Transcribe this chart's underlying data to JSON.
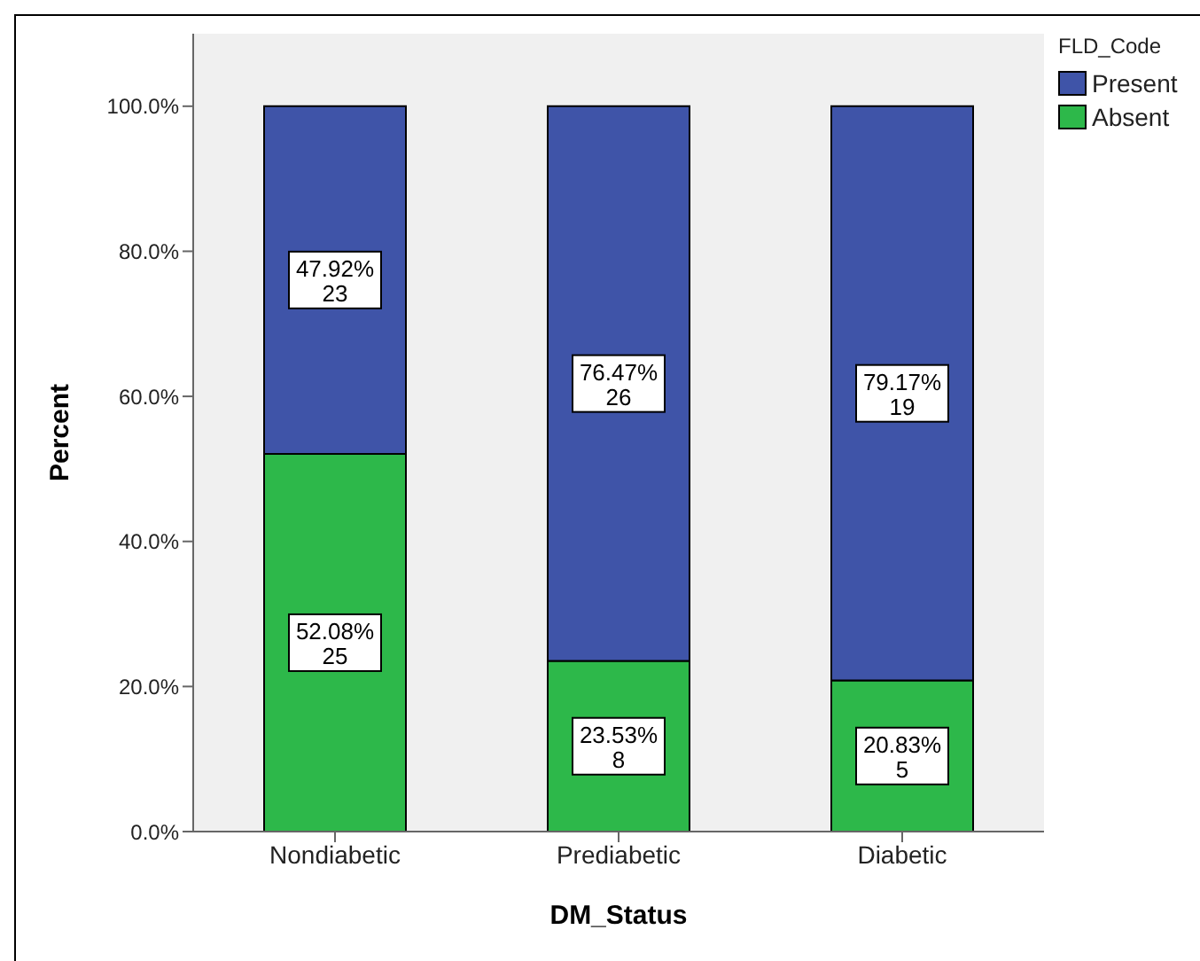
{
  "chart_data": {
    "type": "bar",
    "stacked": true,
    "xlabel": "DM_Status",
    "ylabel": "Percent",
    "legend_title": "FLD_Code",
    "legend": "top right",
    "categories": [
      "Nondiabetic",
      "Prediabetic",
      "Diabetic"
    ],
    "ylim": [
      0,
      110
    ],
    "yticks": [
      {
        "value": 0,
        "label": "0.0%"
      },
      {
        "value": 20,
        "label": "20.0%"
      },
      {
        "value": 40,
        "label": "40.0%"
      },
      {
        "value": 60,
        "label": "60.0%"
      },
      {
        "value": 80,
        "label": "80.0%"
      },
      {
        "value": 100,
        "label": "100.0%"
      }
    ],
    "series": [
      {
        "name": "Absent",
        "color": "#2db84a",
        "values": [
          52.08,
          23.53,
          20.83
        ],
        "value_labels": [
          "52.08%\n25",
          "23.53%\n8",
          "20.83%\n5"
        ]
      },
      {
        "name": "Present",
        "color": "#3f54a8",
        "values": [
          47.92,
          76.47,
          79.17
        ],
        "value_labels": [
          "47.92%\n23",
          "76.47%\n26",
          "79.17%\n19"
        ]
      }
    ]
  }
}
